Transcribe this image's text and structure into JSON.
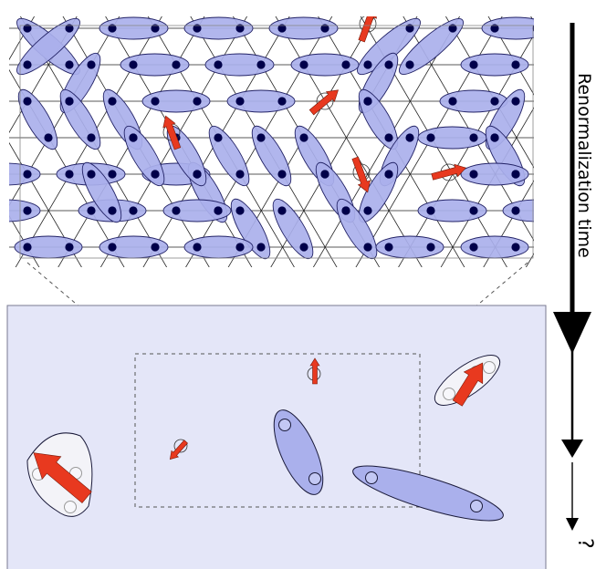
{
  "axis_label": "Renormalization time",
  "final_label": "?",
  "colors": {
    "dimer_fill": "#aab0ec",
    "dimer_stroke": "#222266",
    "site": "#00004a",
    "spin_arrow": "#e8391f",
    "panel_fill": "#e4e6f8",
    "cluster_fill": "#f3f3f8"
  }
}
